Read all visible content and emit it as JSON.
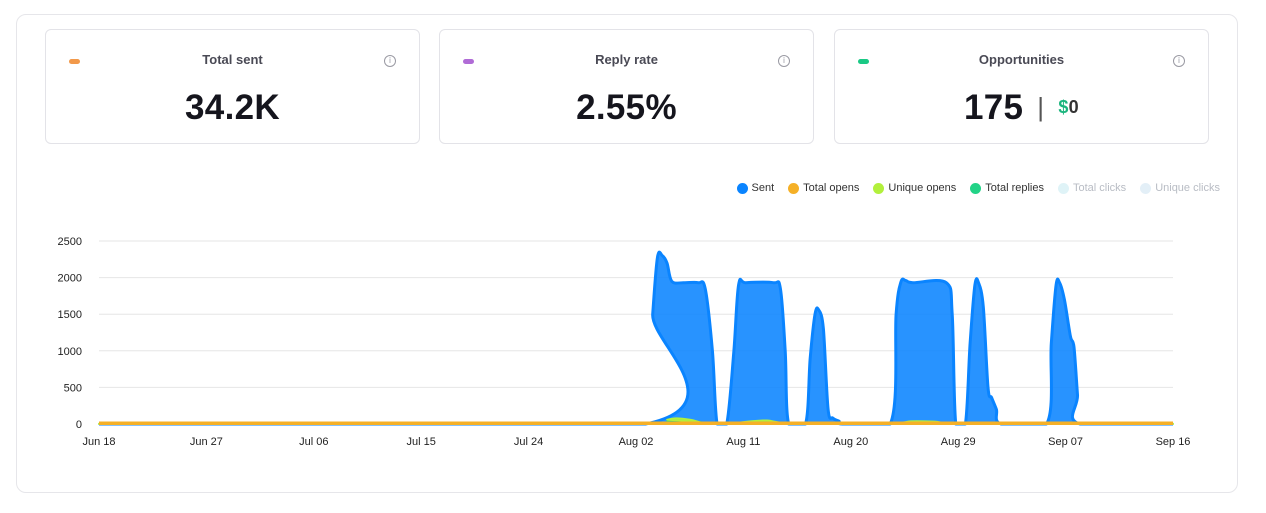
{
  "cards": [
    {
      "title": "Total sent",
      "value": "34.2K",
      "color": "#f2994a"
    },
    {
      "title": "Reply rate",
      "value": "2.55%",
      "color": "#b06bd6"
    },
    {
      "title": "Opportunities",
      "value": "175",
      "money_symbol": "$",
      "money_value": "0",
      "color": "#1ac985"
    }
  ],
  "info_glyph": "i",
  "separator": "|",
  "legend": [
    {
      "label": "Sent",
      "color": "#0a84ff"
    },
    {
      "label": "Total opens",
      "color": "#f5b027"
    },
    {
      "label": "Unique opens",
      "color": "#b2f03c"
    },
    {
      "label": "Total replies",
      "color": "#22d387"
    },
    {
      "label": "Total clicks",
      "color": "#dff3f7"
    },
    {
      "label": "Unique clicks",
      "color": "#e3eff7"
    }
  ],
  "chart_data": {
    "type": "area",
    "ylim": [
      0,
      2500
    ],
    "yticks": [
      0,
      500,
      1000,
      1500,
      2000,
      2500
    ],
    "xticks": [
      "Jun 18",
      "Jun 27",
      "Jul 06",
      "Jul 15",
      "Jul 24",
      "Aug 02",
      "Aug 11",
      "Aug 20",
      "Aug 29",
      "Sep 07",
      "Sep 16"
    ],
    "x_range_days": [
      0,
      90
    ],
    "grid": true,
    "legend_position": "top-right",
    "series": [
      {
        "name": "Sent",
        "color": "#0a84ff",
        "points": [
          [
            0,
            0
          ],
          [
            45.8,
            0
          ],
          [
            46.4,
            1500
          ],
          [
            46.8,
            2280
          ],
          [
            47.2,
            2300
          ],
          [
            47.6,
            2200
          ],
          [
            48,
            1950
          ],
          [
            49,
            1930
          ],
          [
            50.2,
            1930
          ],
          [
            50.8,
            1850
          ],
          [
            51.4,
            1000
          ],
          [
            51.8,
            0
          ],
          [
            52.6,
            0
          ],
          [
            53.2,
            1000
          ],
          [
            53.6,
            1900
          ],
          [
            54.2,
            1930
          ],
          [
            56.5,
            1930
          ],
          [
            57.1,
            1850
          ],
          [
            57.5,
            1000
          ],
          [
            57.8,
            0
          ],
          [
            59.2,
            0
          ],
          [
            59.6,
            900
          ],
          [
            60,
            1500
          ],
          [
            60.3,
            1560
          ],
          [
            60.7,
            1300
          ],
          [
            61.1,
            200
          ],
          [
            61.5,
            80
          ],
          [
            62,
            40
          ],
          [
            62.3,
            0
          ],
          [
            66.3,
            0
          ],
          [
            66.8,
            1500
          ],
          [
            67.2,
            1940
          ],
          [
            67.6,
            1960
          ],
          [
            68.2,
            1930
          ],
          [
            71,
            1930
          ],
          [
            71.5,
            1500
          ],
          [
            71.8,
            0
          ],
          [
            72.6,
            0
          ],
          [
            73,
            1100
          ],
          [
            73.4,
            1900
          ],
          [
            73.7,
            1930
          ],
          [
            74.1,
            1600
          ],
          [
            74.5,
            500
          ],
          [
            74.8,
            360
          ],
          [
            75.2,
            200
          ],
          [
            75.6,
            0
          ],
          [
            79.4,
            0
          ],
          [
            79.8,
            1100
          ],
          [
            80.2,
            1900
          ],
          [
            80.5,
            1930
          ],
          [
            80.9,
            1700
          ],
          [
            81.4,
            1200
          ],
          [
            81.7,
            1050
          ],
          [
            82,
            400
          ],
          [
            82.2,
            0
          ],
          [
            90,
            0
          ]
        ]
      },
      {
        "name": "Total opens",
        "color": "#f5b027",
        "points": [
          [
            0,
            10
          ],
          [
            90,
            10
          ]
        ]
      },
      {
        "name": "Unique opens",
        "color": "#b2f03c",
        "points": [
          [
            0,
            5
          ],
          [
            46.8,
            5
          ],
          [
            47.6,
            60
          ],
          [
            48.4,
            80
          ],
          [
            49.6,
            60
          ],
          [
            51,
            10
          ],
          [
            53.4,
            20
          ],
          [
            54.6,
            40
          ],
          [
            56,
            50
          ],
          [
            57.6,
            15
          ],
          [
            62,
            10
          ],
          [
            67,
            20
          ],
          [
            68,
            40
          ],
          [
            70,
            35
          ],
          [
            72,
            10
          ],
          [
            80,
            15
          ],
          [
            82,
            10
          ],
          [
            90,
            5
          ]
        ]
      },
      {
        "name": "Total replies",
        "color": "#22d387",
        "points": [
          [
            0,
            3
          ],
          [
            46.8,
            3
          ],
          [
            47.6,
            40
          ],
          [
            48.6,
            55
          ],
          [
            50,
            40
          ],
          [
            51.4,
            5
          ],
          [
            54,
            25
          ],
          [
            56,
            35
          ],
          [
            57.6,
            10
          ],
          [
            62,
            8
          ],
          [
            68,
            25
          ],
          [
            70,
            20
          ],
          [
            72,
            5
          ],
          [
            90,
            3
          ]
        ]
      },
      {
        "name": "Total clicks",
        "color": "#dff3f7",
        "points": []
      },
      {
        "name": "Unique clicks",
        "color": "#e3eff7",
        "points": []
      }
    ]
  }
}
